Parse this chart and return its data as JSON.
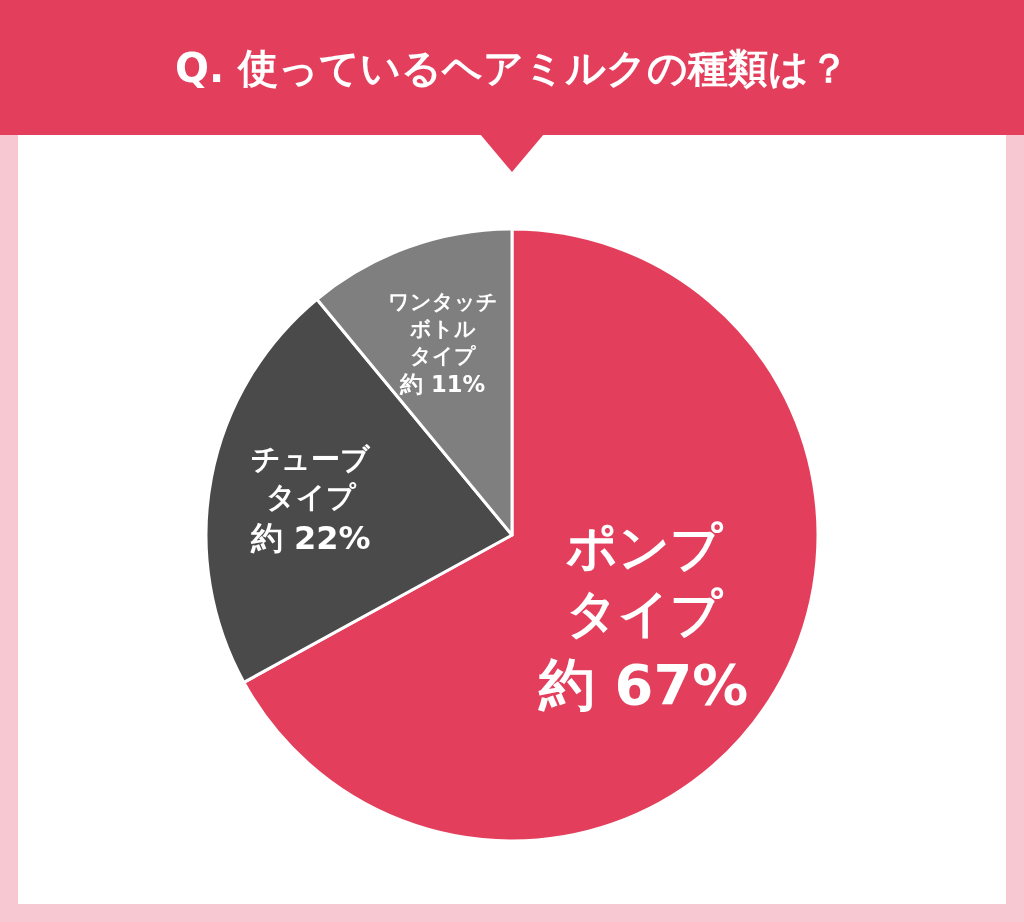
{
  "chart_data": {
    "type": "pie",
    "title": "Q. 使っているヘアミルクの種類は？",
    "categories": [
      "ポンプタイプ",
      "チューブタイプ",
      "ワンタッチボトルタイプ"
    ],
    "values": [
      67,
      22,
      11
    ],
    "colors": [
      "#e33f5c",
      "#4a4a4a",
      "#7f7f7f"
    ],
    "value_labels": [
      "約 67%",
      "約 22%",
      "約 11%"
    ]
  }
}
